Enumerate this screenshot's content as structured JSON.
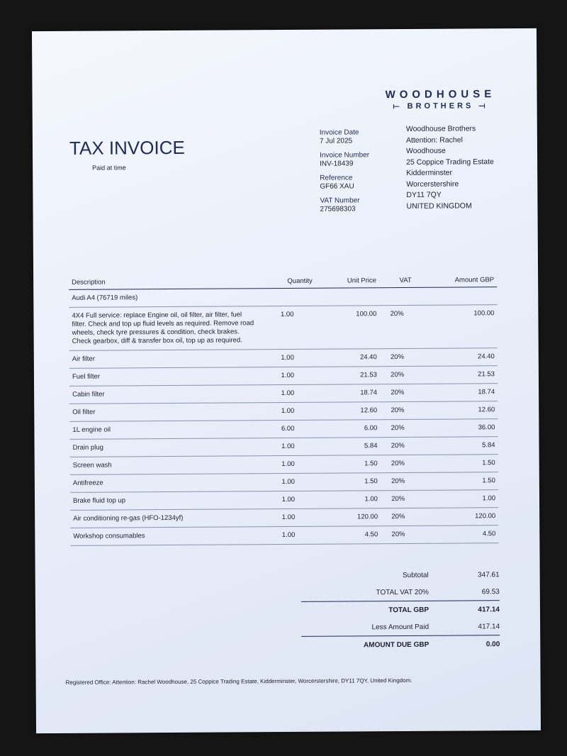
{
  "logo": {
    "line1": "WOODHOUSE",
    "line2": "BROTHERS"
  },
  "title": "TAX INVOICE",
  "subtitle": "Paid at time",
  "meta": [
    {
      "label": "Invoice Date",
      "value": "7 Jul 2025"
    },
    {
      "label": "Invoice Number",
      "value": "INV-18439"
    },
    {
      "label": "Reference",
      "value": "GF66 XAU"
    },
    {
      "label": "VAT Number",
      "value": "275698303"
    }
  ],
  "address": [
    "Woodhouse Brothers",
    "Attention: Rachel",
    "Woodhouse",
    "25 Coppice Trading Estate",
    "Kidderminster",
    "Worcerstershire",
    "DY11 7QY",
    "UNITED KINGDOM"
  ],
  "table": {
    "headers": [
      "Description",
      "Quantity",
      "Unit Price",
      "VAT",
      "Amount GBP"
    ],
    "section": "Audi A4 (76719 miles)",
    "rows": [
      [
        "4X4 Full service: replace Engine oil, oil filter, air filter, fuel filter. Check and top up fluid levels as required. Remove road wheels, check tyre pressures & condition, check brakes. Check gearbox, diff & transfer box oil, top up as required.",
        "1.00",
        "100.00",
        "20%",
        "100.00"
      ],
      [
        "Air filter",
        "1.00",
        "24.40",
        "20%",
        "24.40"
      ],
      [
        "Fuel filter",
        "1.00",
        "21.53",
        "20%",
        "21.53"
      ],
      [
        "Cabin filter",
        "1.00",
        "18.74",
        "20%",
        "18.74"
      ],
      [
        "Oil filter",
        "1.00",
        "12.60",
        "20%",
        "12.60"
      ],
      [
        "1L engine oil",
        "6.00",
        "6.00",
        "20%",
        "36.00"
      ],
      [
        "Drain plug",
        "1.00",
        "5.84",
        "20%",
        "5.84"
      ],
      [
        "Screen wash",
        "1.00",
        "1.50",
        "20%",
        "1.50"
      ],
      [
        "Antifreeze",
        "1.00",
        "1.50",
        "20%",
        "1.50"
      ],
      [
        "Brake fluid top up",
        "1.00",
        "1.00",
        "20%",
        "1.00"
      ],
      [
        "Air conditioning re-gas (HFO-1234yf)",
        "1.00",
        "120.00",
        "20%",
        "120.00"
      ],
      [
        "Workshop consumables",
        "1.00",
        "4.50",
        "20%",
        "4.50"
      ]
    ]
  },
  "totals": {
    "subtotal": {
      "label": "Subtotal",
      "value": "347.61"
    },
    "vat": {
      "label": "TOTAL VAT 20%",
      "value": "69.53"
    },
    "total": {
      "label": "TOTAL GBP",
      "value": "417.14"
    },
    "paid": {
      "label": "Less Amount Paid",
      "value": "417.14"
    },
    "due": {
      "label": "AMOUNT DUE GBP",
      "value": "0.00"
    }
  },
  "footer": "Registered Office: Attention: Rachel Woodhouse, 25 Coppice Trading Estate, Kidderminster, Worcerstershire, DY11 7QY, United Kingdom."
}
